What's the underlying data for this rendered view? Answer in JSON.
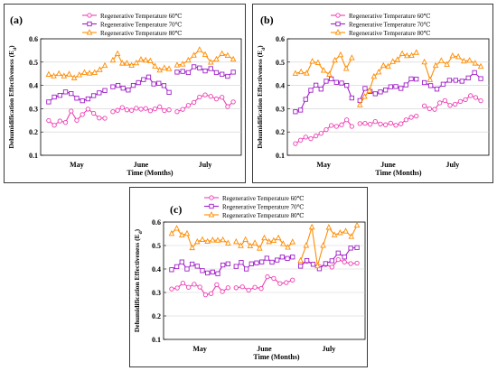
{
  "chart_data": [
    {
      "type": "line",
      "panel_label": "(a)",
      "xlabel": "Time (Months)",
      "ylabel": "Dehumidification Effectiveness (E",
      "ylabel_sub": "d",
      "ylabel_end": ")",
      "ylim": [
        0.1,
        0.6
      ],
      "yticks": [
        "0.1",
        "0.2",
        "0.3",
        "0.4",
        "0.5",
        "0.6"
      ],
      "categories": [
        "May",
        "June",
        "July"
      ],
      "grid": "horizontal",
      "legend_position": "top-left",
      "series": [
        {
          "name": "Regenerative Temperature 60℃",
          "color": "#ee3fb3",
          "marker": "circle",
          "values": [
            [
              0.249,
              0.229,
              0.247,
              0.241,
              0.29,
              0.25,
              0.275,
              0.298,
              0.28,
              0.26,
              0.259
            ],
            [
              0.287,
              0.293,
              0.305,
              0.295,
              0.293,
              0.302,
              0.298,
              0.301,
              0.291,
              0.299,
              0.308,
              0.292,
              0.295
            ],
            [
              0.287,
              0.297,
              0.314,
              0.327,
              0.35,
              0.359,
              0.353,
              0.342,
              0.349,
              0.309,
              0.329
            ]
          ]
        },
        {
          "name": "Regenerative Temperature 70℃",
          "color": "#a020c8",
          "marker": "square",
          "values": [
            [
              0.329,
              0.35,
              0.357,
              0.372,
              0.365,
              0.345,
              0.334,
              0.342,
              0.356,
              0.368,
              0.378
            ],
            [
              0.394,
              0.4,
              0.388,
              0.38,
              0.4,
              0.412,
              0.425,
              0.436,
              0.406,
              0.409,
              0.399,
              0.37
            ],
            [
              0.457,
              0.46,
              0.455,
              0.48,
              0.475,
              0.462,
              0.472,
              0.455,
              0.448,
              0.439,
              0.457
            ]
          ]
        },
        {
          "name": "Regenerative Temperature 80℃",
          "color": "#ff8c00",
          "marker": "triangle",
          "values": [
            [
              0.447,
              0.44,
              0.45,
              0.44,
              0.448,
              0.432,
              0.445,
              0.455,
              0.452,
              0.455,
              0.467,
              0.485
            ],
            [
              0.508,
              0.536,
              0.495,
              0.495,
              0.486,
              0.496,
              0.511,
              0.508,
              0.505,
              0.482,
              0.465,
              0.475,
              0.471
            ],
            [
              0.487,
              0.491,
              0.508,
              0.529,
              0.553,
              0.532,
              0.499,
              0.512,
              0.536,
              0.528,
              0.512
            ]
          ]
        }
      ]
    },
    {
      "type": "line",
      "panel_label": "(b)",
      "xlabel": "Time (Months)",
      "ylabel": "Dehumidification Effectiveness (E",
      "ylabel_sub": "d",
      "ylabel_end": ")",
      "ylim": [
        0.1,
        0.6
      ],
      "yticks": [
        "0.1",
        "0.2",
        "0.3",
        "0.4",
        "0.5",
        "0.6"
      ],
      "categories": [
        "May",
        "June",
        "July"
      ],
      "grid": "horizontal",
      "legend_position": "top-left",
      "series": [
        {
          "name": "Regenerative Temperature 60℃",
          "color": "#ee3fb3",
          "marker": "circle",
          "values": [
            [
              0.15,
              0.165,
              0.178,
              0.171,
              0.183,
              0.194,
              0.21,
              0.228,
              0.224,
              0.231,
              0.252,
              0.224
            ],
            [
              0.236,
              0.237,
              0.233,
              0.245,
              0.234,
              0.231,
              0.238,
              0.229,
              0.235,
              0.252,
              0.263,
              0.268
            ],
            [
              0.312,
              0.3,
              0.297,
              0.325,
              0.335,
              0.314,
              0.319,
              0.331,
              0.339,
              0.356,
              0.348,
              0.334
            ]
          ]
        },
        {
          "name": "Regenerative Temperature 70℃",
          "color": "#a020c8",
          "marker": "square",
          "values": [
            [
              0.287,
              0.294,
              0.34,
              0.379,
              0.401,
              0.384,
              0.418,
              0.428,
              0.413,
              0.41,
              0.4,
              0.346
            ],
            [
              0.335,
              0.387,
              0.374,
              0.364,
              0.372,
              0.38,
              0.394,
              0.395,
              0.387,
              0.402,
              0.428,
              0.427
            ],
            [
              0.412,
              0.399,
              0.384,
              0.405,
              0.422,
              0.422,
              0.418,
              0.432,
              0.455,
              0.429
            ]
          ]
        },
        {
          "name": "Regenerative Temperature 80℃",
          "color": "#ff8c00",
          "marker": "triangle",
          "values": [
            [
              0.451,
              0.458,
              0.452,
              0.503,
              0.497,
              0.464,
              0.447,
              0.508,
              0.531,
              0.472,
              0.518
            ],
            [
              0.316,
              0.352,
              0.377,
              0.438,
              0.457,
              0.485,
              0.481,
              0.502,
              0.51,
              0.536,
              0.527,
              0.528,
              0.541
            ],
            [
              0.5,
              0.424,
              0.485,
              0.506,
              0.49,
              0.527,
              0.523,
              0.504,
              0.507,
              0.495,
              0.481
            ]
          ]
        }
      ]
    },
    {
      "type": "line",
      "panel_label": "(c)",
      "xlabel": "Time (Months)",
      "ylabel": "Dehumidification Effectiveness (E",
      "ylabel_sub": "d",
      "ylabel_end": ")",
      "ylim": [
        0.1,
        0.6
      ],
      "yticks": [
        "0.1",
        "0.2",
        "0.3",
        "0.4",
        "0.5",
        "0.6"
      ],
      "categories": [
        "May",
        "June",
        "July"
      ],
      "grid": "horizontal",
      "legend_position": "top-left",
      "series": [
        {
          "name": "Regenerative Temperature 60℃",
          "color": "#ee3fb3",
          "marker": "circle",
          "values": [
            [
              0.315,
              0.319,
              0.34,
              0.322,
              0.335,
              0.323,
              0.29,
              0.295,
              0.333,
              0.304,
              0.32
            ],
            [
              0.32,
              0.324,
              0.31,
              0.322,
              0.317,
              0.367,
              0.36,
              0.338,
              0.342,
              0.353
            ],
            [
              0.425,
              0.432,
              0.42,
              0.41,
              0.419,
              0.408,
              0.44,
              0.43,
              0.423,
              0.425
            ]
          ]
        },
        {
          "name": "Regenerative Temperature 70℃",
          "color": "#a020c8",
          "marker": "square",
          "values": [
            [
              0.397,
              0.41,
              0.43,
              0.4,
              0.421,
              0.412,
              0.393,
              0.383,
              0.387,
              0.38,
              0.417,
              0.422
            ],
            [
              0.411,
              0.428,
              0.4,
              0.422,
              0.426,
              0.43,
              0.446,
              0.429,
              0.438,
              0.451,
              0.445,
              0.451
            ],
            [
              0.412,
              0.436,
              0.42,
              0.401,
              0.423,
              0.435,
              0.468,
              0.451,
              0.489,
              0.491
            ]
          ]
        },
        {
          "name": "Regenerative Temperature 80℃",
          "color": "#ff8c00",
          "marker": "triangle",
          "values": [
            [
              0.551,
              0.573,
              0.544,
              0.551,
              0.49,
              0.516,
              0.525,
              0.517,
              0.523,
              0.522,
              0.524,
              0.51
            ],
            [
              0.516,
              0.499,
              0.525,
              0.498,
              0.511,
              0.488,
              0.532,
              0.516,
              0.521,
              0.532,
              0.507,
              0.492,
              0.515
            ],
            [
              0.436,
              0.5,
              0.578,
              0.413,
              0.5,
              0.577,
              0.545,
              0.554,
              0.561,
              0.538,
              0.586
            ]
          ]
        }
      ]
    }
  ]
}
